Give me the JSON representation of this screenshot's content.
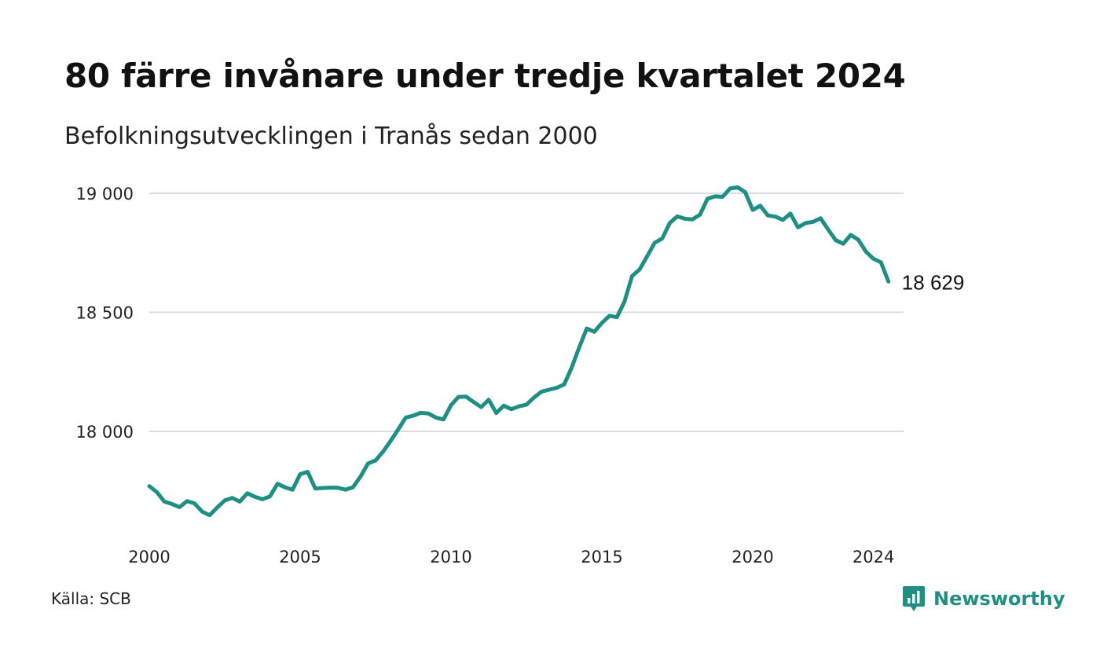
{
  "title": "80 färre invånare under tredje kvartalet 2024",
  "subtitle": "Befolkningsutvecklingen i Tranås sedan 2000",
  "source": "Källa: SCB",
  "brand": {
    "name": "Newsworthy",
    "icon": "newsworthy-logo-icon",
    "color": "#1f8f84"
  },
  "chart_data": {
    "type": "line",
    "title": "80 färre invånare under tredje kvartalet 2024",
    "subtitle": "Befolkningsutvecklingen i Tranås sedan 2000",
    "xlabel": "",
    "ylabel": "",
    "xlim": [
      2000,
      2025
    ],
    "ylim": [
      17580,
      19050
    ],
    "x_ticks": [
      2000,
      2005,
      2010,
      2015,
      2020,
      2024
    ],
    "x_tick_labels": [
      "2000",
      "2005",
      "2010",
      "2015",
      "2020",
      "2024"
    ],
    "y_ticks": [
      18000,
      18500,
      19000
    ],
    "y_tick_labels": [
      "18 000",
      "18 500",
      "19 000"
    ],
    "grid": "horizontal",
    "line_color": "#1f8f84",
    "end_label": "18 629",
    "series": [
      {
        "x": [
          2000.0,
          2000.25,
          2000.5,
          2000.75,
          2001.0,
          2001.25,
          2001.5,
          2001.75,
          2002.0,
          2002.25,
          2002.5,
          2002.75,
          2003.0,
          2003.25,
          2003.5,
          2003.75,
          2004.0,
          2004.25,
          2004.5,
          2004.75,
          2005.0,
          2005.25,
          2005.5,
          2005.75,
          2006.0,
          2006.25,
          2006.5,
          2006.75,
          2007.0,
          2007.25,
          2007.5,
          2007.75,
          2008.0,
          2008.25,
          2008.5,
          2008.75,
          2009.0,
          2009.25,
          2009.5,
          2009.75,
          2010.0,
          2010.25,
          2010.5,
          2010.75,
          2011.0,
          2011.25,
          2011.5,
          2011.75,
          2012.0,
          2012.25,
          2012.5,
          2012.75,
          2013.0,
          2013.25,
          2013.5,
          2013.75,
          2014.0,
          2014.25,
          2014.5,
          2014.75,
          2015.0,
          2015.25,
          2015.5,
          2015.75,
          2016.0,
          2016.25,
          2016.5,
          2016.75,
          2017.0,
          2017.25,
          2017.5,
          2017.75,
          2018.0,
          2018.25,
          2018.5,
          2018.75,
          2019.0,
          2019.25,
          2019.5,
          2019.75,
          2020.0,
          2020.25,
          2020.5,
          2020.75,
          2021.0,
          2021.25,
          2021.5,
          2021.75,
          2022.0,
          2022.25,
          2022.5,
          2022.75,
          2023.0,
          2023.25,
          2023.5,
          2023.75,
          2024.0,
          2024.25,
          2024.5
        ],
        "values": [
          17770,
          17745,
          17705,
          17695,
          17682,
          17707,
          17697,
          17663,
          17648,
          17680,
          17710,
          17720,
          17705,
          17740,
          17725,
          17715,
          17727,
          17780,
          17765,
          17755,
          17820,
          17830,
          17760,
          17762,
          17763,
          17763,
          17755,
          17765,
          17810,
          17865,
          17878,
          17915,
          17960,
          18008,
          18058,
          18066,
          18078,
          18075,
          18058,
          18050,
          18110,
          18145,
          18146,
          18123,
          18102,
          18133,
          18077,
          18108,
          18093,
          18105,
          18112,
          18142,
          18167,
          18175,
          18183,
          18197,
          18268,
          18353,
          18432,
          18418,
          18455,
          18485,
          18480,
          18545,
          18652,
          18680,
          18735,
          18792,
          18810,
          18875,
          18903,
          18893,
          18890,
          18910,
          18977,
          18987,
          18985,
          19020,
          19025,
          19005,
          18930,
          18948,
          18907,
          18902,
          18888,
          18915,
          18857,
          18875,
          18880,
          18895,
          18848,
          18803,
          18788,
          18825,
          18805,
          18755,
          18725,
          18710,
          18629
        ]
      }
    ]
  }
}
